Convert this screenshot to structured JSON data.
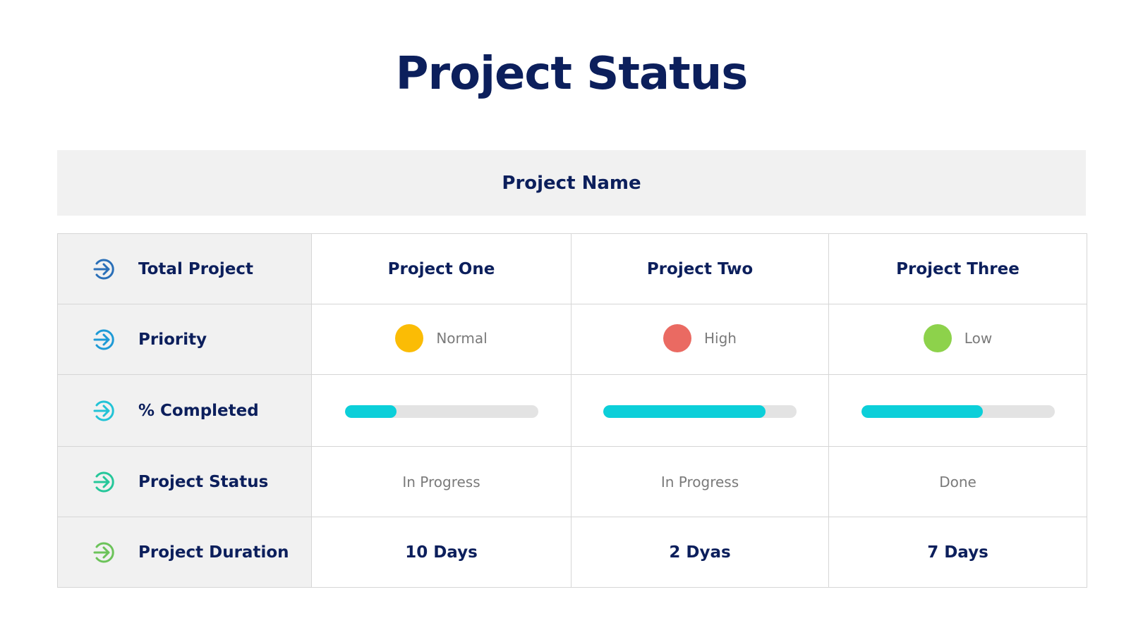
{
  "title": "Project Status",
  "band_label": "Project Name",
  "rows": [
    {
      "label": "Total Project",
      "icon": "arrow-circle-right-icon",
      "color": "#2a6fb8"
    },
    {
      "label": "Priority",
      "icon": "arrow-circle-right-icon",
      "color": "#1e9ad6"
    },
    {
      "label": "% Completed",
      "icon": "arrow-circle-right-icon",
      "color": "#22c3d6"
    },
    {
      "label": "Project Status",
      "icon": "arrow-circle-right-icon",
      "color": "#26c79a"
    },
    {
      "label": "Project Duration",
      "icon": "arrow-circle-right-icon",
      "color": "#6cc35a"
    }
  ],
  "projects": [
    {
      "name": "Project One",
      "priority": "Normal",
      "priority_color": "#fbbc05",
      "completed_pct": 27,
      "status": "In Progress",
      "duration": "10 Days"
    },
    {
      "name": "Project Two",
      "priority": "High",
      "priority_color": "#ea6a62",
      "completed_pct": 84,
      "status": "In Progress",
      "duration": "2 Dyas"
    },
    {
      "name": "Project Three",
      "priority": "Low",
      "priority_color": "#8dd24b",
      "completed_pct": 63,
      "status": "Done",
      "duration": "7 Days"
    }
  ],
  "colors": {
    "title": "#0c1f5c",
    "progress_fill": "#0ccfd9",
    "progress_track": "#e3e3e3"
  }
}
